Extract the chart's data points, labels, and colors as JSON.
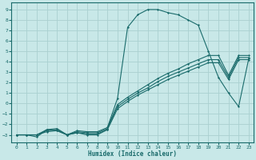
{
  "xlabel": "Humidex (Indice chaleur)",
  "bg_color": "#c8e8e8",
  "grid_color": "#aad0d0",
  "line_color": "#1a6b6b",
  "xlim": [
    -0.5,
    23.5
  ],
  "ylim": [
    -3.7,
    9.7
  ],
  "xticks": [
    0,
    1,
    2,
    3,
    4,
    5,
    6,
    7,
    8,
    9,
    10,
    11,
    12,
    13,
    14,
    15,
    16,
    17,
    18,
    19,
    20,
    21,
    22,
    23
  ],
  "yticks": [
    -3,
    -2,
    -1,
    0,
    1,
    2,
    3,
    4,
    5,
    6,
    7,
    8,
    9
  ],
  "series": [
    {
      "x": [
        0,
        1,
        2,
        3,
        4,
        5,
        6,
        7,
        8,
        9
      ],
      "y": [
        -3.0,
        -3.0,
        -3.2,
        -2.5,
        -2.6,
        -3.0,
        -2.8,
        -3.0,
        -3.0,
        -2.5
      ]
    },
    {
      "x": [
        0,
        1,
        2,
        3,
        4,
        5,
        6,
        7,
        8,
        9,
        10,
        11,
        12,
        13,
        14,
        15,
        16,
        17,
        18,
        19,
        20,
        21,
        22,
        23
      ],
      "y": [
        -3.0,
        -3.0,
        -3.0,
        -2.7,
        -2.6,
        -3.0,
        -2.8,
        -2.9,
        -2.9,
        -2.5,
        -0.5,
        0.2,
        0.8,
        1.3,
        1.8,
        2.3,
        2.7,
        3.1,
        3.5,
        3.9,
        3.9,
        2.3,
        4.2,
        4.2
      ]
    },
    {
      "x": [
        0,
        1,
        2,
        3,
        4,
        5,
        6,
        7,
        8,
        9,
        10,
        11,
        12,
        13,
        14,
        15,
        16,
        17,
        18,
        19,
        20,
        21,
        22,
        23
      ],
      "y": [
        -3.0,
        -3.0,
        -3.0,
        -2.6,
        -2.5,
        -3.0,
        -2.7,
        -2.8,
        -2.8,
        -2.4,
        -0.3,
        0.4,
        1.0,
        1.5,
        2.1,
        2.6,
        3.0,
        3.4,
        3.8,
        4.2,
        4.2,
        2.5,
        4.4,
        4.4
      ]
    },
    {
      "x": [
        0,
        1,
        2,
        3,
        4,
        5,
        6,
        7,
        8,
        9,
        10,
        11,
        12,
        13,
        14,
        15,
        16,
        17,
        18,
        19,
        20,
        21,
        22,
        23
      ],
      "y": [
        -3.0,
        -3.0,
        -3.0,
        -2.5,
        -2.4,
        -3.0,
        -2.6,
        -2.7,
        -2.7,
        -2.3,
        -0.1,
        0.6,
        1.2,
        1.8,
        2.4,
        2.9,
        3.3,
        3.8,
        4.2,
        4.6,
        4.6,
        2.7,
        4.6,
        4.6
      ]
    },
    {
      "x": [
        9,
        10,
        11,
        12,
        13,
        14,
        15,
        16,
        17,
        18,
        19,
        20,
        21,
        22,
        23
      ],
      "y": [
        -2.3,
        0.5,
        7.3,
        8.5,
        9.0,
        9.0,
        8.7,
        8.5,
        8.0,
        7.5,
        5.0,
        2.5,
        1.0,
        -0.3,
        4.3
      ]
    }
  ]
}
